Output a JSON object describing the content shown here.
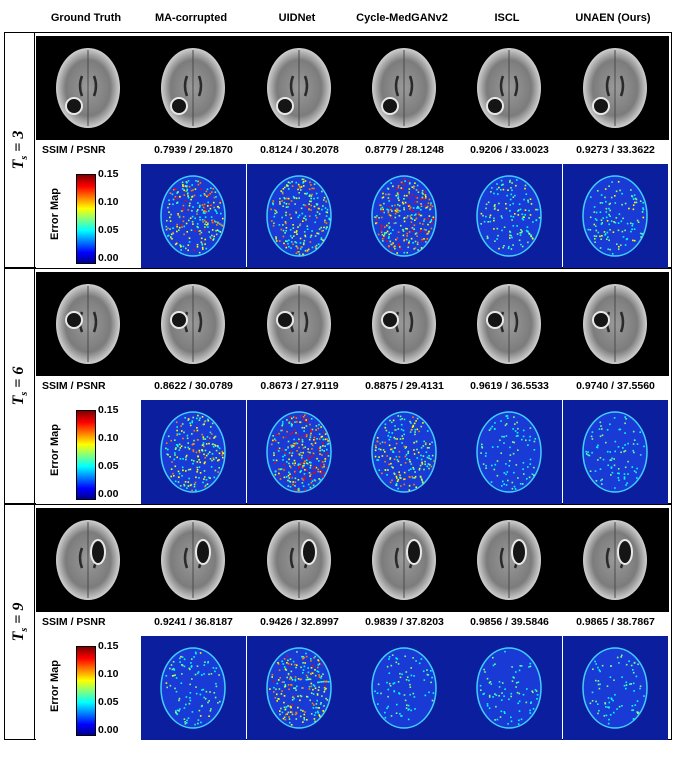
{
  "columns": [
    "Ground Truth",
    "MA-corrupted",
    "UIDNet",
    "Cycle-MedGANv2",
    "ISCL",
    "UNAEN (Ours)"
  ],
  "metric_label": "SSIM / PSNR",
  "colorbar": {
    "title": "Error Map",
    "ticks": [
      "0.15",
      "0.10",
      "0.05",
      "0.00"
    ],
    "colors": [
      "#00008f",
      "#0000ff",
      "#00ffff",
      "#ffff00",
      "#ff0000",
      "#800000"
    ]
  },
  "rows": [
    {
      "label_main": "T",
      "label_sub": "s",
      "label_value": "3",
      "metrics": [
        "0.7939 / 29.1870",
        "0.8124 / 30.2078",
        "0.8779 / 28.1248",
        "0.9206 / 33.0023",
        "0.9273 / 33.3622"
      ],
      "error_levels": [
        0.75,
        0.7,
        0.9,
        0.35,
        0.3
      ]
    },
    {
      "label_main": "T",
      "label_sub": "s",
      "label_value": "6",
      "metrics": [
        "0.8622 / 30.0789",
        "0.8673 / 27.9119",
        "0.8875 / 29.4131",
        "0.9619 / 36.5533",
        "0.9740 / 37.5560"
      ],
      "error_levels": [
        0.6,
        0.95,
        0.6,
        0.2,
        0.18
      ]
    },
    {
      "label_main": "T",
      "label_sub": "s",
      "label_value": "9",
      "metrics": [
        "0.9241 / 36.8187",
        "0.9426 / 32.8997",
        "0.9839 / 37.8203",
        "0.9856 / 39.5846",
        "0.9865 / 38.7867"
      ],
      "error_levels": [
        0.25,
        0.7,
        0.15,
        0.15,
        0.15
      ]
    }
  ]
}
